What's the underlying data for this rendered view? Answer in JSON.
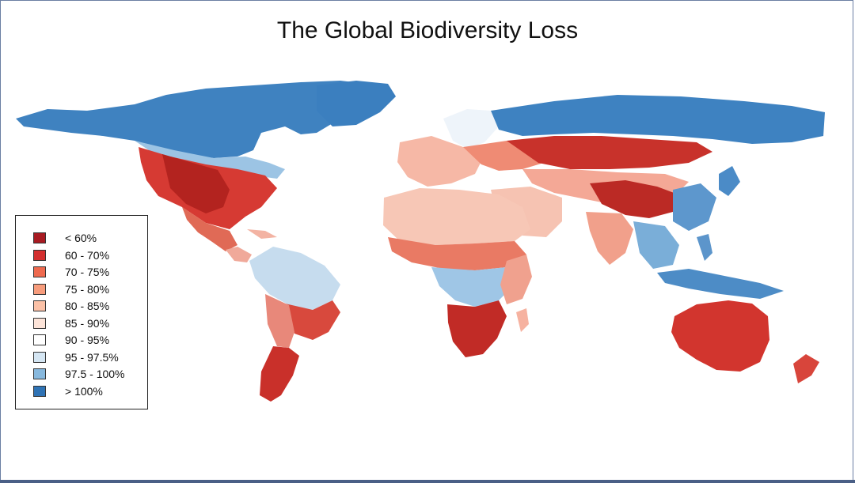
{
  "title": "The Global Biodiversity Loss",
  "legend": {
    "items": [
      {
        "label": "< 60%",
        "color": "#a81b22"
      },
      {
        "label": "60 - 70%",
        "color": "#d32f2f"
      },
      {
        "label": "70 - 75%",
        "color": "#ef6a4f"
      },
      {
        "label": "75 - 80%",
        "color": "#f79c7c"
      },
      {
        "label": "80 - 85%",
        "color": "#fbc1a7"
      },
      {
        "label": "85 - 90%",
        "color": "#fde4d9"
      },
      {
        "label": "90 - 95%",
        "color": "#ffffff"
      },
      {
        "label": "95 - 97.5%",
        "color": "#d5e6f3"
      },
      {
        "label": "97.5 - 100%",
        "color": "#88b9de"
      },
      {
        "label": "> 100%",
        "color": "#2f73b5"
      }
    ]
  }
}
